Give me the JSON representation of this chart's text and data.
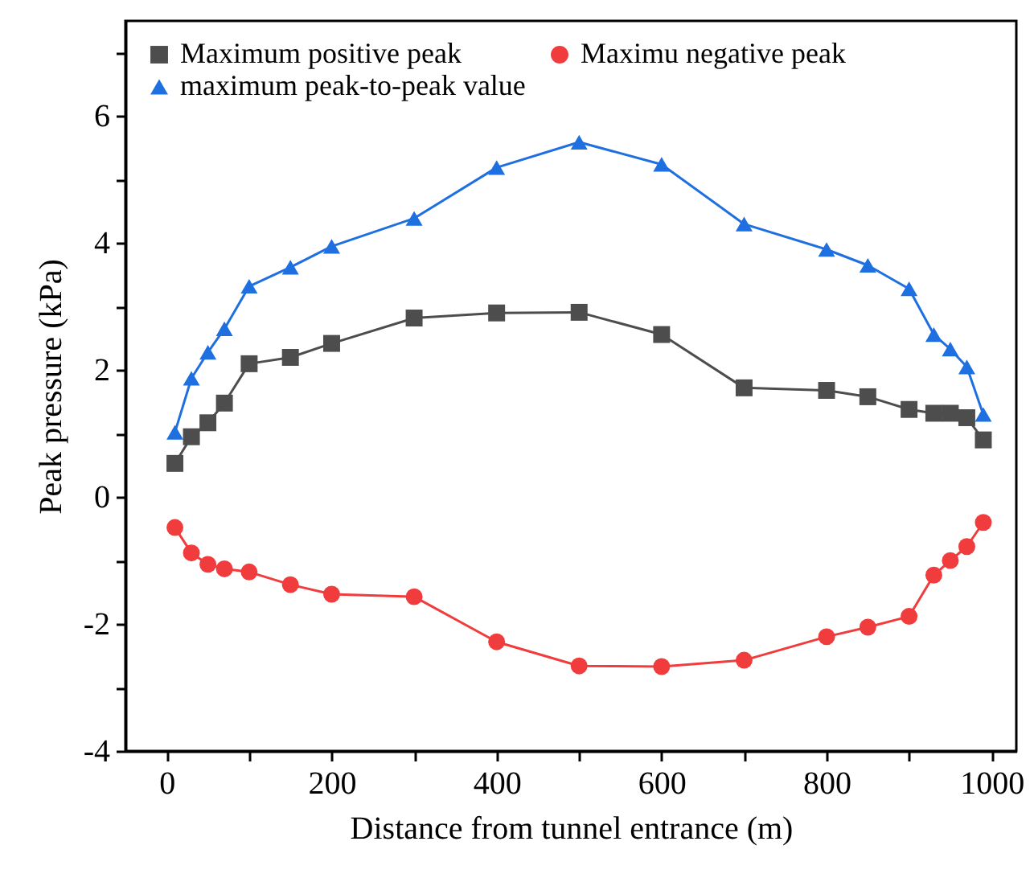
{
  "chart_data": {
    "type": "line",
    "xlabel": "Distance from tunnel entrance (m)",
    "ylabel": "Peak pressure (kPa)",
    "x": [
      10,
      30,
      50,
      70,
      100,
      150,
      200,
      300,
      400,
      500,
      600,
      700,
      800,
      850,
      900,
      930,
      950,
      970,
      990
    ],
    "series": [
      {
        "name": "Maximum positive peak",
        "color": "#4d4d4d",
        "marker": "square",
        "values": [
          0.53,
          0.95,
          1.17,
          1.48,
          2.1,
          2.2,
          2.42,
          2.82,
          2.9,
          2.91,
          2.56,
          1.72,
          1.68,
          1.58,
          1.38,
          1.32,
          1.32,
          1.25,
          0.9
        ]
      },
      {
        "name": "Maximu negative peak",
        "color": "#f03c3c",
        "marker": "circle",
        "values": [
          -0.48,
          -0.88,
          -1.06,
          -1.13,
          -1.18,
          -1.38,
          -1.53,
          -1.57,
          -2.28,
          -2.66,
          -2.67,
          -2.57,
          -2.2,
          -2.05,
          -1.88,
          -1.23,
          -1.0,
          -0.78,
          -0.4
        ]
      },
      {
        "name": "maximum peak-to-peak value",
        "color": "#1e6fe0",
        "marker": "triangle",
        "values": [
          1.02,
          1.87,
          2.28,
          2.65,
          3.32,
          3.62,
          3.95,
          4.39,
          5.19,
          5.59,
          5.24,
          4.3,
          3.9,
          3.65,
          3.28,
          2.56,
          2.33,
          2.05,
          1.3
        ]
      }
    ],
    "xlim": [
      -50,
      1030
    ],
    "xticks": [
      0,
      {
        "value": 100,
        "label": null
      },
      200,
      {
        "value": 300,
        "label": null
      },
      400,
      {
        "value": 500,
        "label": null
      },
      600,
      {
        "value": 700,
        "label": null
      },
      800,
      {
        "value": 900,
        "label": null
      },
      1000
    ],
    "ylim": [
      -4,
      7.5
    ],
    "yticks": [
      -4,
      {
        "value": -3,
        "label": null
      },
      -2,
      {
        "value": -1,
        "label": null
      },
      0,
      {
        "value": 1,
        "label": null
      },
      2,
      {
        "value": 3,
        "label": null
      },
      4,
      {
        "value": 5,
        "label": null
      },
      6,
      {
        "value": 7,
        "label": null
      }
    ],
    "grid": false,
    "legend": "top",
    "line_style": "solid"
  }
}
